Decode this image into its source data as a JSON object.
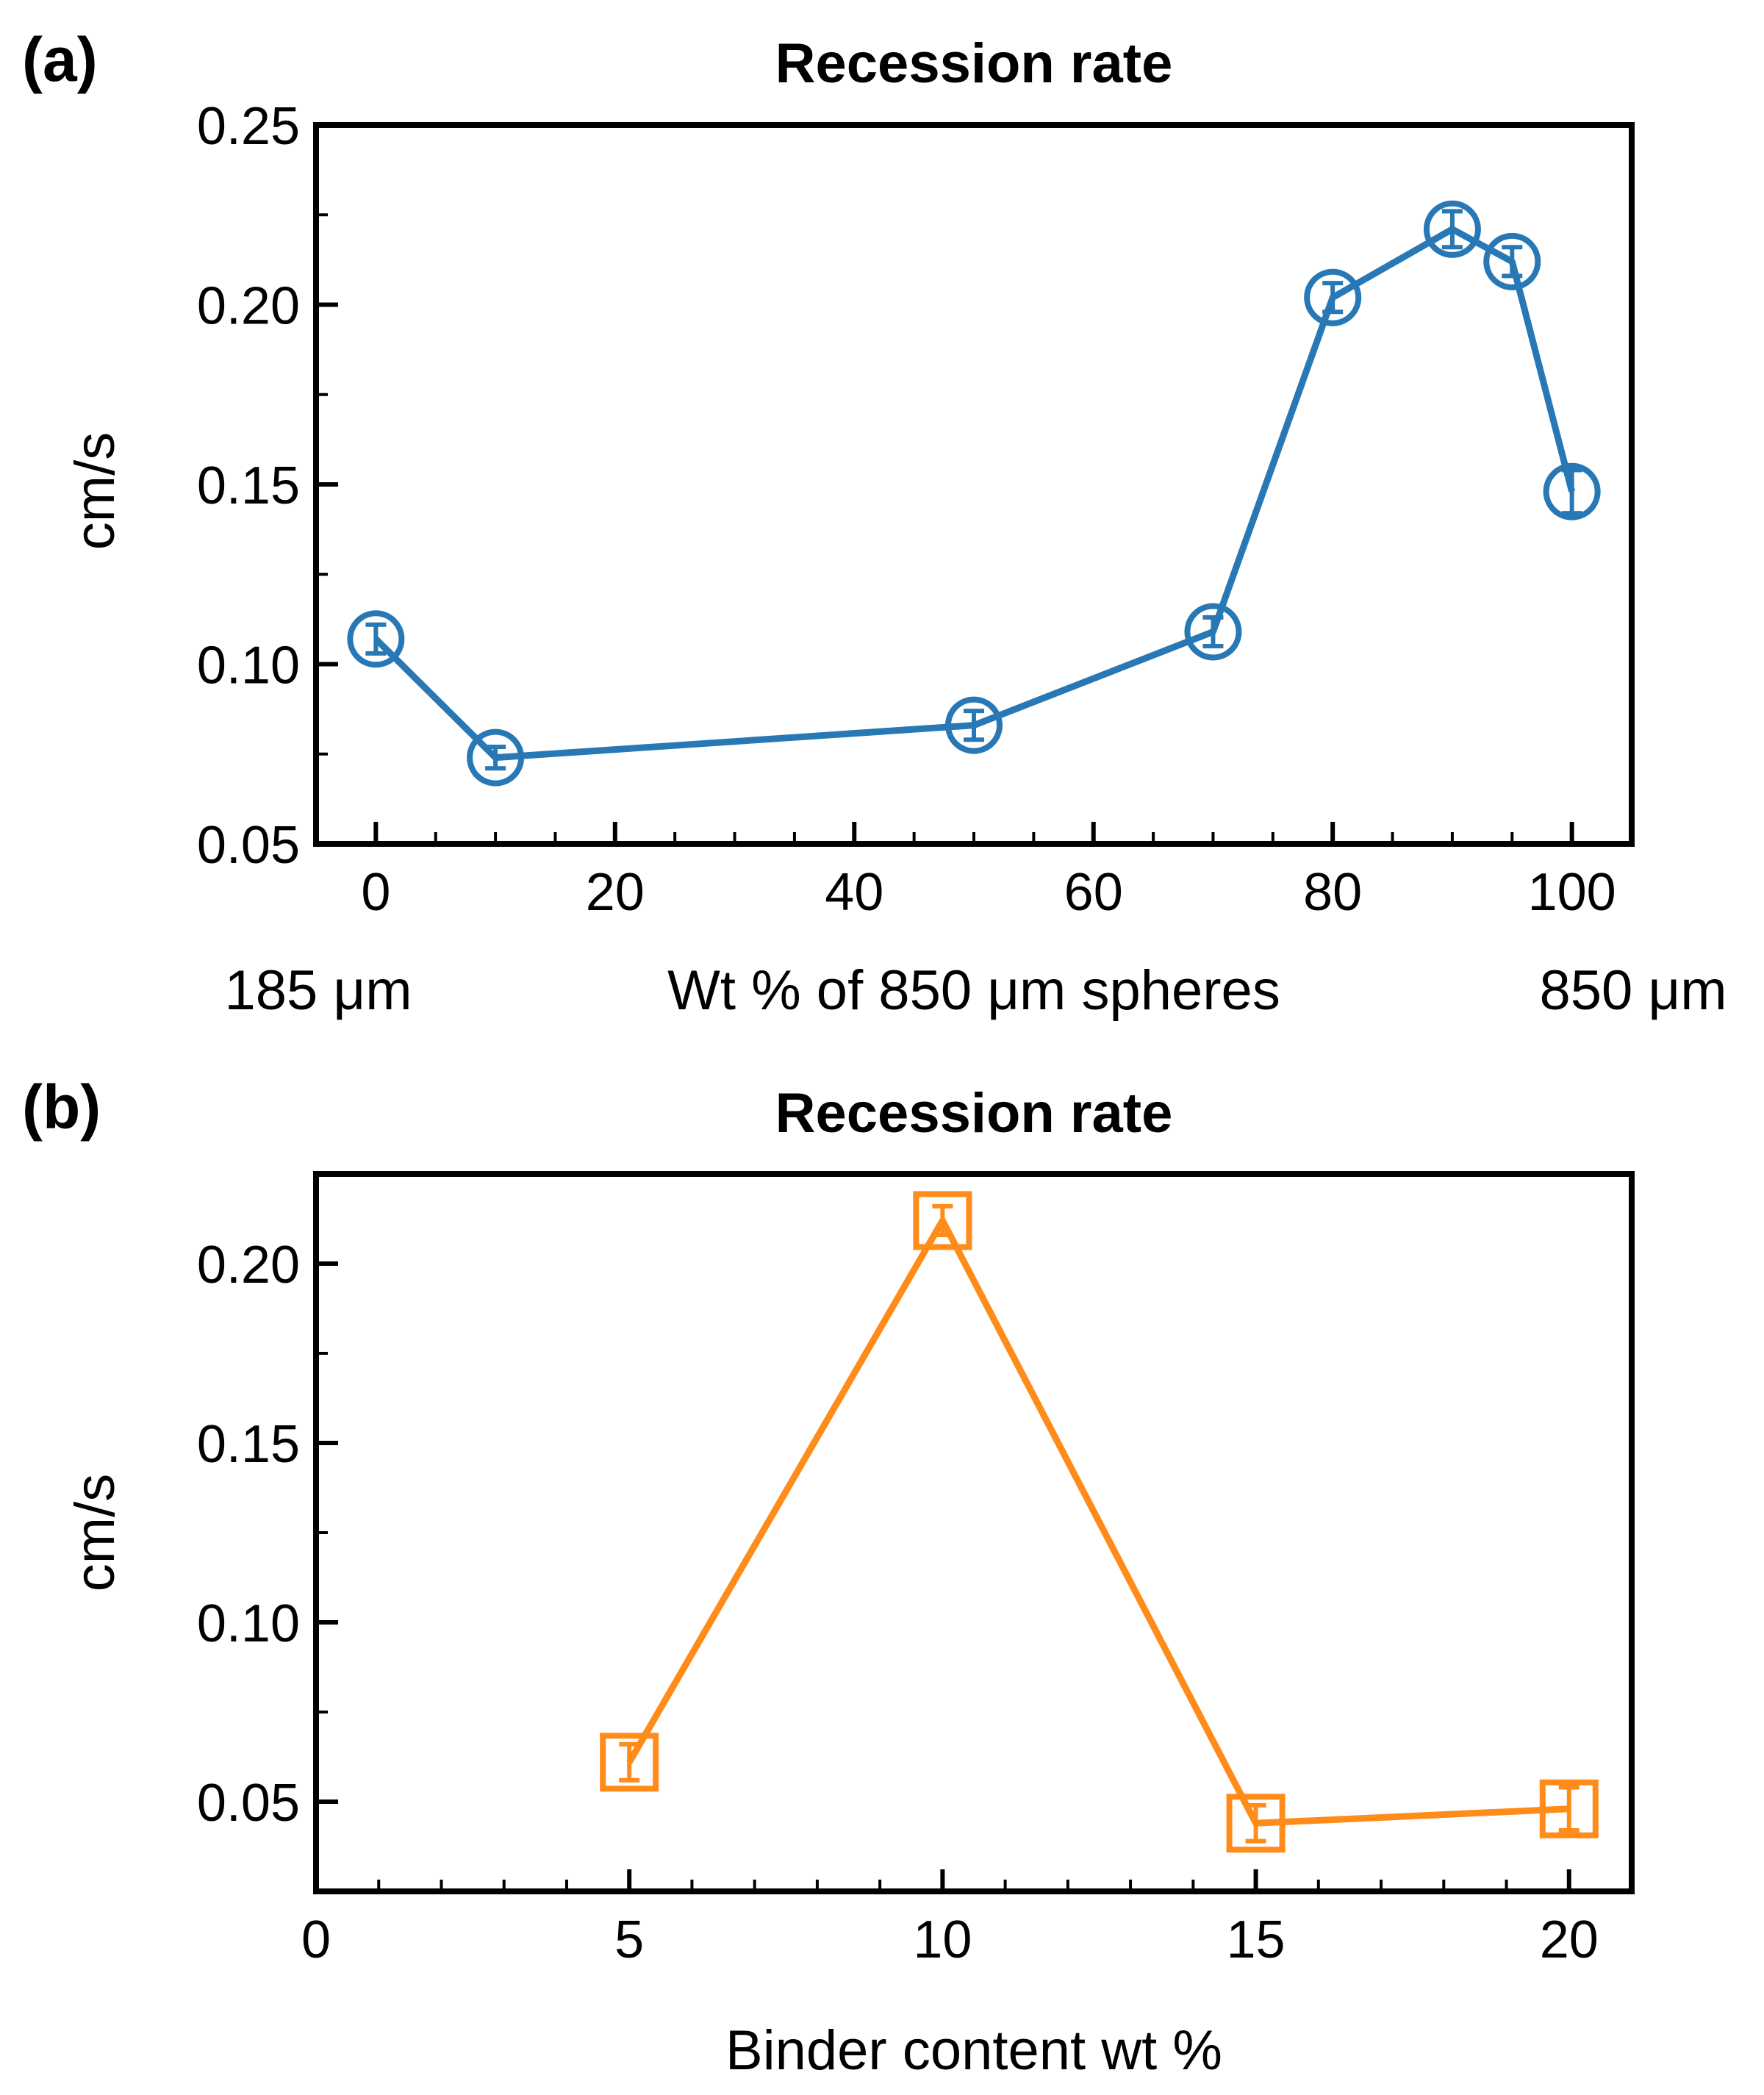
{
  "chart_data": [
    {
      "panel_label": "(a)",
      "type": "line",
      "title": "Recession rate",
      "xlabel": "Wt % of 850 μm spheres",
      "ylabel": "cm/s",
      "x_left_annotation": "185 μm",
      "x_right_annotation": "850 μm",
      "xlim": [
        -5,
        105
      ],
      "ylim": [
        0.05,
        0.25
      ],
      "xticks": [
        0,
        20,
        40,
        60,
        80,
        100
      ],
      "yticks": [
        0.05,
        0.1,
        0.15,
        0.2,
        0.25
      ],
      "ytick_labels": [
        "0.05",
        "0.10",
        "0.15",
        "0.20",
        "0.25"
      ],
      "x_minor_step": 5,
      "y_minor_step": 0.025,
      "marker": "circle",
      "color": "#2878b5",
      "grid": false,
      "series": [
        {
          "x": [
            0,
            10,
            50,
            70,
            80,
            90,
            95,
            100
          ],
          "y": [
            0.107,
            0.074,
            0.083,
            0.109,
            0.202,
            0.221,
            0.212,
            0.148
          ],
          "err": [
            0.004,
            0.003,
            0.004,
            0.004,
            0.004,
            0.005,
            0.004,
            0.006
          ]
        }
      ]
    },
    {
      "panel_label": "(b)",
      "type": "line",
      "title": "Recession rate",
      "xlabel": "Binder content wt %",
      "ylabel": "cm/s",
      "xlim": [
        0,
        21
      ],
      "ylim": [
        0.025,
        0.225
      ],
      "xticks": [
        0,
        5,
        10,
        15,
        20
      ],
      "yticks": [
        0.05,
        0.1,
        0.15,
        0.2
      ],
      "ytick_labels": [
        "0.05",
        "0.10",
        "0.15",
        "0.20"
      ],
      "x_minor_step": 1,
      "y_minor_step": 0.025,
      "marker": "square",
      "color": "#ff8c1a",
      "grid": false,
      "series": [
        {
          "x": [
            5,
            10,
            15,
            20
          ],
          "y": [
            0.061,
            0.212,
            0.044,
            0.048
          ],
          "err": [
            0.005,
            0.004,
            0.005,
            0.006
          ]
        }
      ]
    }
  ]
}
